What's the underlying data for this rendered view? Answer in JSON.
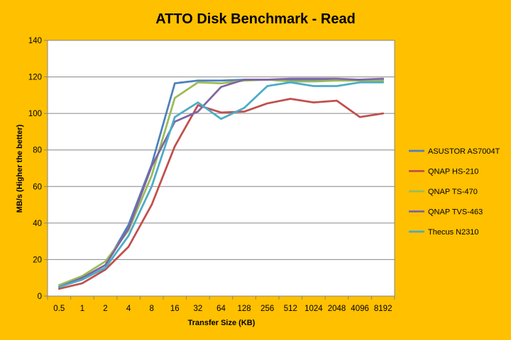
{
  "colors": {
    "background": "#FFC000",
    "plot_area": "#FFFFFF",
    "gridline": "#868686",
    "axis": "#868686"
  },
  "chart_data": {
    "type": "line",
    "title": "ATTO Disk Benchmark - Read",
    "xlabel": "Transfer Size (KB)",
    "ylabel": "MB/s (Higher the better)",
    "categories": [
      "0.5",
      "1",
      "2",
      "4",
      "8",
      "16",
      "32",
      "64",
      "128",
      "256",
      "512",
      "1024",
      "2048",
      "4096",
      "8192"
    ],
    "ylim": [
      0,
      140
    ],
    "yticks": [
      0,
      20,
      40,
      60,
      80,
      100,
      120,
      140
    ],
    "grid": true,
    "legend_position": "right",
    "series": [
      {
        "name": "ASUSTOR AS7004T",
        "color": "#4F81BD",
        "values": [
          5,
          10,
          17,
          39,
          72,
          116.5,
          118,
          118,
          118.5,
          118.5,
          118.5,
          118.5,
          118.5,
          118.5,
          118.5
        ]
      },
      {
        "name": "QNAP HS-210",
        "color": "#C0504D",
        "values": [
          4,
          7,
          14.5,
          27,
          50,
          82,
          104.5,
          100.5,
          101,
          105.5,
          108,
          106,
          107,
          98,
          100
        ]
      },
      {
        "name": "QNAP TS-470",
        "color": "#9BBB59",
        "values": [
          6,
          11,
          19,
          36,
          66,
          108.5,
          117,
          116.5,
          118,
          118.5,
          117.5,
          117.5,
          118,
          118,
          118
        ]
      },
      {
        "name": "QNAP TVS-463",
        "color": "#8064A2",
        "values": [
          5,
          10,
          17,
          37,
          71,
          95.5,
          101,
          114.5,
          118.5,
          118.5,
          119,
          119,
          119,
          118.5,
          119
        ]
      },
      {
        "name": "Thecus N2310",
        "color": "#4BACC6",
        "values": [
          5,
          9,
          15.5,
          33,
          60,
          98,
          106,
          97,
          103,
          115,
          117,
          115,
          115,
          117,
          117
        ]
      }
    ]
  }
}
